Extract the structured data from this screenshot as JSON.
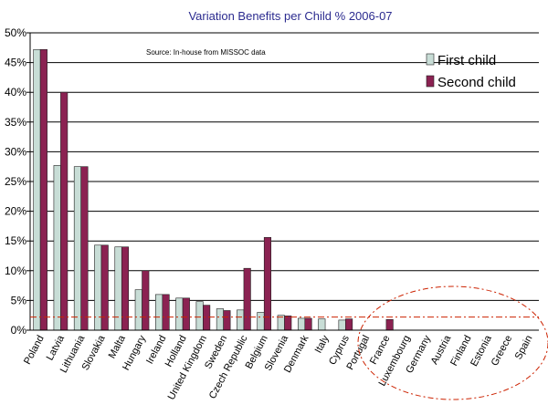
{
  "chart_data": {
    "type": "bar",
    "title": "Variation Benefits per Child % 2006-07",
    "annotation": "Source: In-house from MISSOC data",
    "categories": [
      "Poland",
      "Latvia",
      "Lithuania",
      "Slovakia",
      "Malta",
      "Hungary",
      "Ireland",
      "Holland",
      "United Kingdom",
      "Sweden",
      "Czech Republic",
      "Belgium",
      "Slovenia",
      "Denmark",
      "Italy",
      "Cyprus",
      "Portugal",
      "France",
      "Luxembourg",
      "Germany",
      "Austria",
      "Finland",
      "Estonia",
      "Greece",
      "Spain"
    ],
    "series": [
      {
        "name": "First child",
        "color": "#c8ddd6",
        "values": [
          47.2,
          27.7,
          27.5,
          14.3,
          14.0,
          6.8,
          6.0,
          5.4,
          4.8,
          3.6,
          3.4,
          3.0,
          2.5,
          2.0,
          1.9,
          1.7,
          0,
          0,
          0,
          0,
          0,
          0,
          0,
          0,
          0
        ]
      },
      {
        "name": "Second child",
        "color": "#8b2252",
        "values": [
          47.2,
          40.0,
          27.5,
          14.3,
          14.0,
          10.0,
          6.0,
          5.4,
          4.2,
          3.3,
          10.4,
          15.6,
          2.4,
          2.0,
          0,
          1.9,
          0,
          1.8,
          0,
          0,
          0,
          0,
          0,
          0,
          0
        ]
      }
    ],
    "y_ticks": [
      "0%",
      "5%",
      "10%",
      "15%",
      "20%",
      "25%",
      "30%",
      "35%",
      "40%",
      "45%",
      "50%"
    ],
    "ylim": [
      0,
      50
    ],
    "xlabel": "",
    "ylabel": "",
    "grid": true,
    "legend_position": "top-right",
    "reference_line_value": 2.2,
    "reference_line_color": "#cc2200",
    "highlight_ellipse_color": "#cc2200"
  }
}
